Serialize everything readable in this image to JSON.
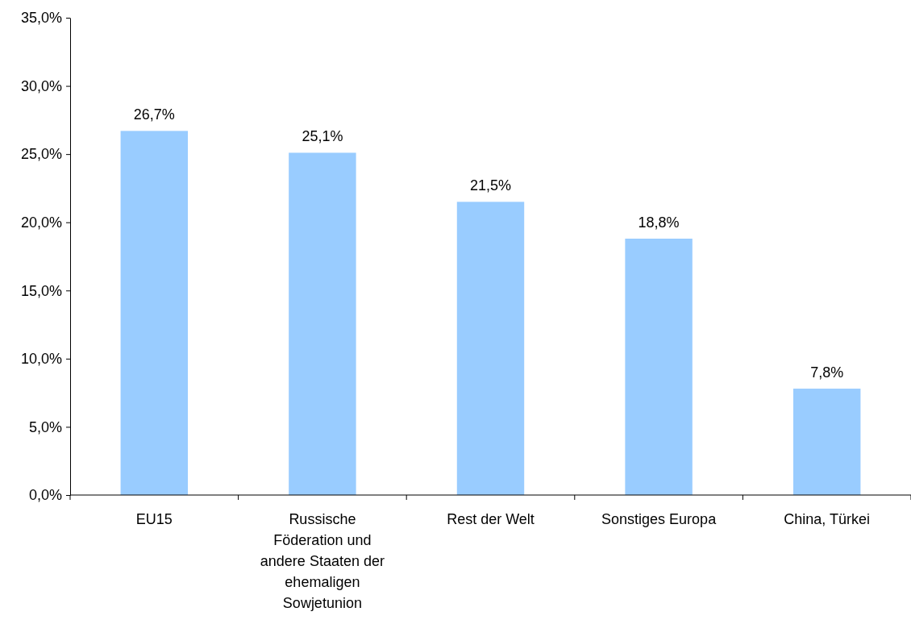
{
  "chart_data": {
    "type": "bar",
    "categories": [
      "EU15",
      "Russische Föderation und andere Staaten der ehemaligen Sowjetunion",
      "Rest der Welt",
      "Sonstiges Europa",
      "China, Türkei"
    ],
    "values": [
      26.7,
      25.1,
      21.5,
      18.8,
      7.8
    ],
    "value_labels": [
      "26,7%",
      "25,1%",
      "21,5%",
      "18,8%",
      "7,8%"
    ],
    "color": "#99ccff",
    "ylim": [
      0,
      35
    ],
    "yticks": [
      {
        "value": 0,
        "label": "0,0%"
      },
      {
        "value": 5,
        "label": "5,0%"
      },
      {
        "value": 10,
        "label": "10,0%"
      },
      {
        "value": 15,
        "label": "15,0%"
      },
      {
        "value": 20,
        "label": "20,0%"
      },
      {
        "value": 25,
        "label": "25,0%"
      },
      {
        "value": 30,
        "label": "30,0%"
      },
      {
        "value": 35,
        "label": "35,0%"
      }
    ],
    "grid": false
  }
}
